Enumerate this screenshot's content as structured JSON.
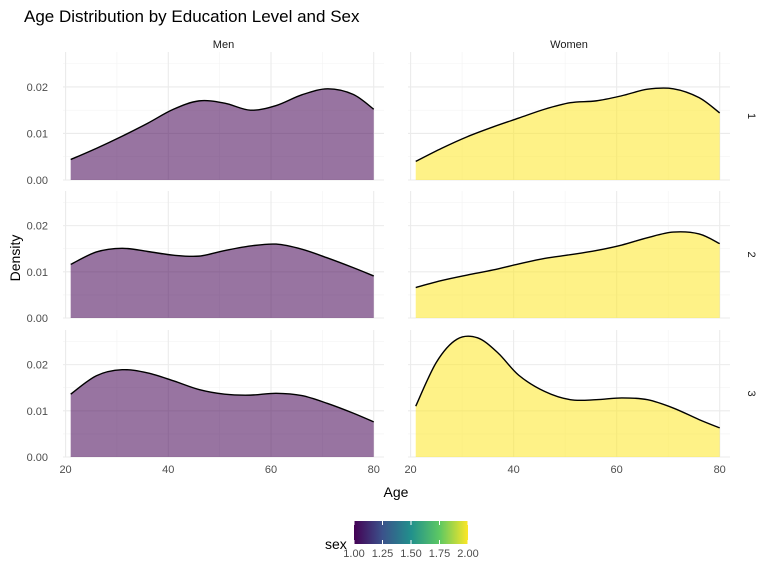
{
  "chart_data": {
    "type": "area",
    "title": "Age Distribution by Education Level and Sex",
    "xlabel": "Age",
    "ylabel": "Density",
    "xlim": [
      19.5,
      82
    ],
    "ylim": [
      0,
      0.0275
    ],
    "x_ticks": [
      20,
      40,
      60,
      80
    ],
    "y_ticks": [
      0,
      0.01,
      0.02
    ],
    "y_tick_labels": [
      "0.00",
      "0.01",
      "0.02"
    ],
    "columns": [
      "Men",
      "Women"
    ],
    "rows": [
      "1",
      "2",
      "3"
    ],
    "grid": true,
    "panels": [
      {
        "col": "Men",
        "row": "1",
        "fill": "#440154",
        "x": [
          21,
          26,
          31,
          36,
          41,
          46,
          51,
          56,
          61,
          66,
          71,
          76,
          80
        ],
        "y": [
          0.0044,
          0.0068,
          0.0094,
          0.0122,
          0.0152,
          0.017,
          0.0165,
          0.015,
          0.016,
          0.0183,
          0.0196,
          0.0184,
          0.0152
        ]
      },
      {
        "col": "Women",
        "row": "1",
        "fill": "#FDE725",
        "x": [
          21,
          26,
          31,
          36,
          41,
          46,
          51,
          56,
          61,
          66,
          71,
          76,
          80
        ],
        "y": [
          0.004,
          0.0068,
          0.0093,
          0.0114,
          0.0133,
          0.0152,
          0.0166,
          0.017,
          0.0181,
          0.0195,
          0.0196,
          0.0177,
          0.0144
        ]
      },
      {
        "col": "Men",
        "row": "2",
        "fill": "#440154",
        "x": [
          21,
          26,
          31,
          36,
          41,
          46,
          51,
          56,
          61,
          66,
          71,
          76,
          80
        ],
        "y": [
          0.0116,
          0.0143,
          0.0151,
          0.0144,
          0.0136,
          0.0134,
          0.0146,
          0.0156,
          0.016,
          0.0149,
          0.013,
          0.0109,
          0.0091
        ]
      },
      {
        "col": "Women",
        "row": "2",
        "fill": "#FDE725",
        "x": [
          21,
          26,
          31,
          36,
          41,
          46,
          51,
          56,
          61,
          66,
          71,
          76,
          80
        ],
        "y": [
          0.0066,
          0.0081,
          0.0093,
          0.0104,
          0.0117,
          0.0129,
          0.0137,
          0.0146,
          0.0158,
          0.0174,
          0.0186,
          0.0182,
          0.0161
        ]
      },
      {
        "col": "Men",
        "row": "3",
        "fill": "#440154",
        "x": [
          21,
          26,
          31,
          36,
          41,
          46,
          51,
          56,
          61,
          66,
          71,
          76,
          80
        ],
        "y": [
          0.0136,
          0.0176,
          0.0189,
          0.0182,
          0.0165,
          0.0146,
          0.0136,
          0.0134,
          0.0138,
          0.0133,
          0.0116,
          0.0095,
          0.0076
        ]
      },
      {
        "col": "Women",
        "row": "3",
        "fill": "#FDE725",
        "x": [
          21,
          25,
          29,
          33,
          37,
          41,
          46,
          51,
          56,
          61,
          66,
          71,
          76,
          80
        ],
        "y": [
          0.011,
          0.0205,
          0.0255,
          0.0258,
          0.0225,
          0.0177,
          0.0142,
          0.0124,
          0.0124,
          0.0128,
          0.0124,
          0.0106,
          0.0081,
          0.0063
        ]
      }
    ],
    "fill_opacity": 0.55,
    "legend": {
      "title": "sex",
      "type": "colorbar",
      "position": "bottom",
      "range": [
        1.0,
        2.0
      ],
      "ticks": [
        1.0,
        1.25,
        1.5,
        1.75,
        2.0
      ],
      "tick_labels": [
        "1.00",
        "1.25",
        "1.50",
        "1.75",
        "2.00"
      ],
      "colors": [
        "#440154",
        "#3B528B",
        "#21908C",
        "#5DC863",
        "#FDE725"
      ]
    },
    "colors": {
      "grid_major": "#ebebeb",
      "grid_minor": "#f3f3f3",
      "line": "#000000"
    }
  }
}
